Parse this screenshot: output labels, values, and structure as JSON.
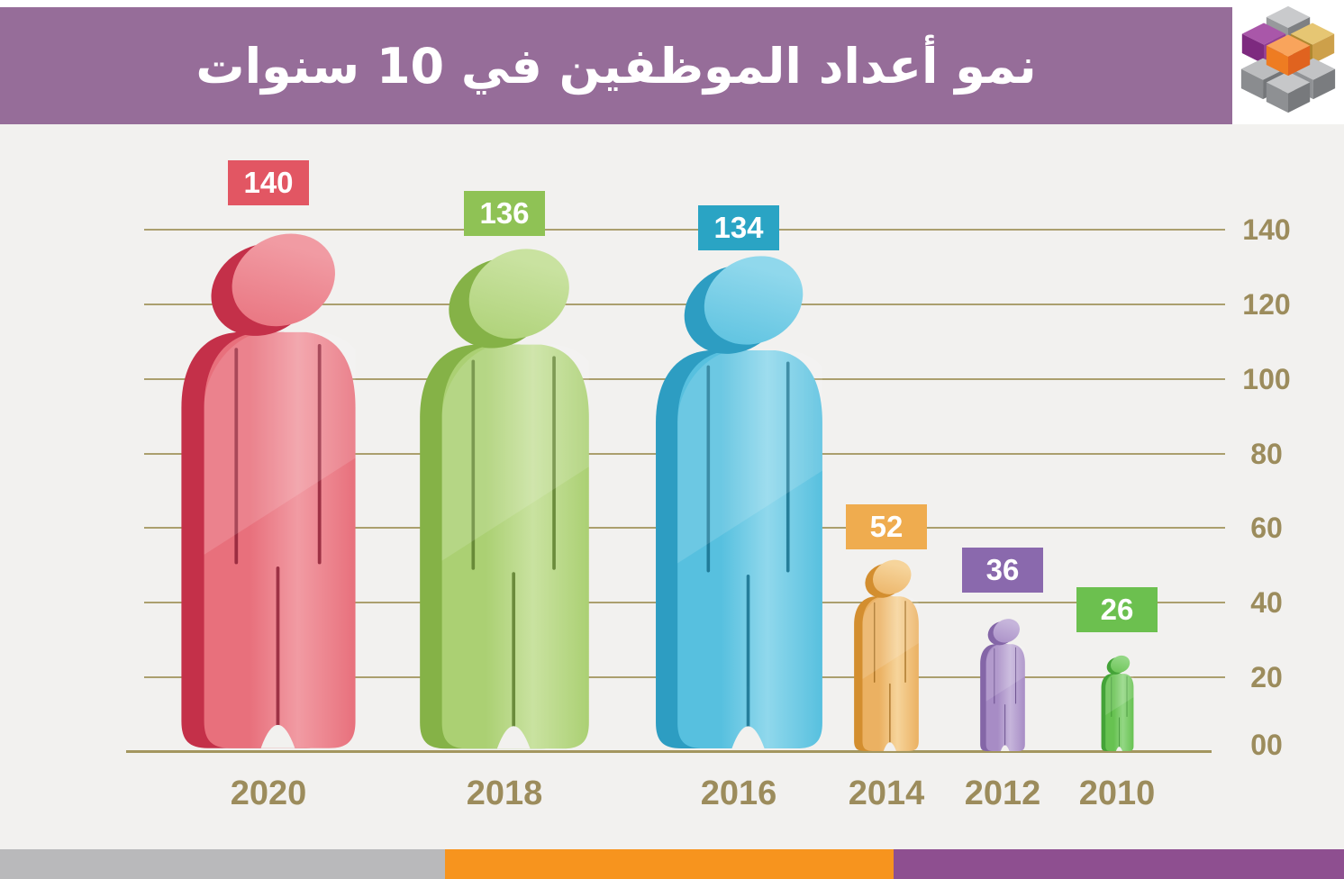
{
  "header": {
    "title": "نمو أعداد الموظفين في 10 سنوات",
    "bg_color": "#966d99",
    "text_color": "#ffffff"
  },
  "logo": {
    "name": "cubes-3d-logo",
    "cube_colors": {
      "gray_top": [
        "#c9cacc",
        "#97999c",
        "#7e8083"
      ],
      "purple": [
        "#a957a9",
        "#7d2a7f",
        "#933f95"
      ],
      "gold": [
        "#e6c673",
        "#b0882f",
        "#cda04a"
      ],
      "orange": [
        "#f9a45c",
        "#ee7c22",
        "#e0631f"
      ],
      "gray_left": [
        "#bcbdbf",
        "#8a8c8f",
        "#747679"
      ],
      "gray_right": [
        "#c2c3c5",
        "#909295",
        "#7a7c7f"
      ],
      "gray_center": [
        "#c6c7c9",
        "#8e9093",
        "#77797c"
      ]
    }
  },
  "chart_data": {
    "type": "bar",
    "variant": "people-pictogram",
    "title": "نمو أعداد الموظفين في 10 سنوات",
    "categories": [
      "2020",
      "2018",
      "2016",
      "2014",
      "2012",
      "2010"
    ],
    "values": [
      140,
      136,
      134,
      52,
      36,
      26
    ],
    "xlabel": "",
    "ylabel": "",
    "ylim": [
      0,
      140
    ],
    "ytick_step": 20,
    "yticks": [
      {
        "label": "140",
        "value": 140
      },
      {
        "label": "120",
        "value": 120
      },
      {
        "label": "100",
        "value": 100
      },
      {
        "label": "80",
        "value": 80
      },
      {
        "label": "60",
        "value": 60
      },
      {
        "label": "40",
        "value": 40
      },
      {
        "label": "20",
        "value": 20
      },
      {
        "label": "00",
        "value": 0
      }
    ],
    "grid": true,
    "legend": "none",
    "axis_color": "#a3965f",
    "tick_label_color": "#9c8c5c",
    "series": [
      {
        "category": "2020",
        "value": 140,
        "badge_label": "140",
        "badge_color": "#e25663",
        "main": "#e8707c",
        "dark": "#c43049",
        "light": "#f19ba3",
        "seam": "#8e2237"
      },
      {
        "category": "2018",
        "value": 136,
        "badge_label": "136",
        "badge_color": "#8fc255",
        "main": "#abd073",
        "dark": "#85b247",
        "light": "#c9e2a0",
        "seam": "#5d7e2e"
      },
      {
        "category": "2016",
        "value": 134,
        "badge_label": "134",
        "badge_color": "#2aa4c4",
        "main": "#57c0df",
        "dark": "#2d9dc2",
        "light": "#90d8ec",
        "seam": "#17708d"
      },
      {
        "category": "2014",
        "value": 52,
        "badge_label": "52",
        "badge_color": "#efac4f",
        "main": "#ebb162",
        "dark": "#d38e2f",
        "light": "#f6d49b",
        "seam": "#9d671a"
      },
      {
        "category": "2012",
        "value": 36,
        "badge_label": "36",
        "badge_color": "#8a69ad",
        "main": "#a78cc5",
        "dark": "#8466a7",
        "light": "#c6b5db",
        "seam": "#5b4180"
      },
      {
        "category": "2010",
        "value": 26,
        "badge_label": "26",
        "badge_color": "#6cc04f",
        "main": "#67c251",
        "dark": "#44a338",
        "light": "#93d784",
        "seam": "#2d7d27"
      }
    ]
  },
  "footer": {
    "segments": [
      {
        "name": "gray",
        "color": "#b9b9bb"
      },
      {
        "name": "orange",
        "color": "#f7941e"
      },
      {
        "name": "purple",
        "color": "#8e4f90"
      }
    ]
  }
}
